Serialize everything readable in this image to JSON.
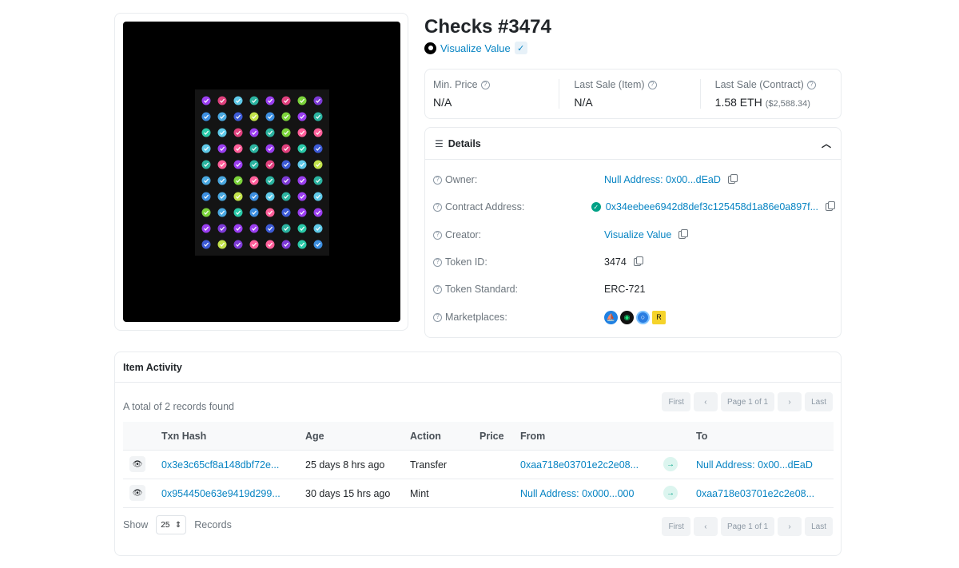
{
  "title": "Checks #3474",
  "creator": {
    "name": "Visualize Value",
    "verified_icon": "check-icon"
  },
  "prices": [
    {
      "label": "Min. Price",
      "value": "N/A",
      "sub": ""
    },
    {
      "label": "Last Sale (Item)",
      "value": "N/A",
      "sub": ""
    },
    {
      "label": "Last Sale (Contract)",
      "value": "1.58 ETH",
      "sub": "($2,588.34)"
    }
  ],
  "details": {
    "heading": "Details",
    "owner_label": "Owner:",
    "owner_value": "Null Address: 0x00...dEaD",
    "contract_label": "Contract Address:",
    "contract_value": "0x34eebee6942d8def3c125458d1a86e0a897f...",
    "creator_label": "Creator:",
    "creator_value": "Visualize Value",
    "token_id_label": "Token ID:",
    "token_id_value": "3474",
    "standard_label": "Token Standard:",
    "standard_value": "ERC-721",
    "marketplaces_label": "Marketplaces:"
  },
  "activity": {
    "heading": "Item Activity",
    "records": "A total of 2 records found",
    "pager": {
      "first": "First",
      "prev": "‹",
      "page": "Page 1 of 1",
      "next": "›",
      "last": "Last"
    },
    "columns": {
      "hash": "Txn Hash",
      "age": "Age",
      "action": "Action",
      "price": "Price",
      "from": "From",
      "to": "To"
    },
    "rows": [
      {
        "hash": "0x3e3c65cf8a148dbf72e...",
        "age": "25 days 8 hrs ago",
        "action": "Transfer",
        "price": "",
        "from": "0xaa718e03701e2c2e08...",
        "to": "Null Address: 0x00...dEaD"
      },
      {
        "hash": "0x954450e63e9419d299...",
        "age": "30 days 15 hrs ago",
        "action": "Mint",
        "price": "",
        "from": "Null Address: 0x000...000",
        "to": "0xaa718e03701e2c2e08..."
      }
    ],
    "show_label": "Show",
    "show_value": "25",
    "records_label": "Records"
  },
  "grid_colors": [
    "#7bd33a",
    "#5fc9e8",
    "#2bb3a0",
    "#3d5bd6",
    "#4aa8e0",
    "#9a3ef0",
    "#e0407d",
    "#3c8ee0",
    "#2ac9a8",
    "#c2e24a",
    "#7d3ad6",
    "#ff5f9a"
  ]
}
